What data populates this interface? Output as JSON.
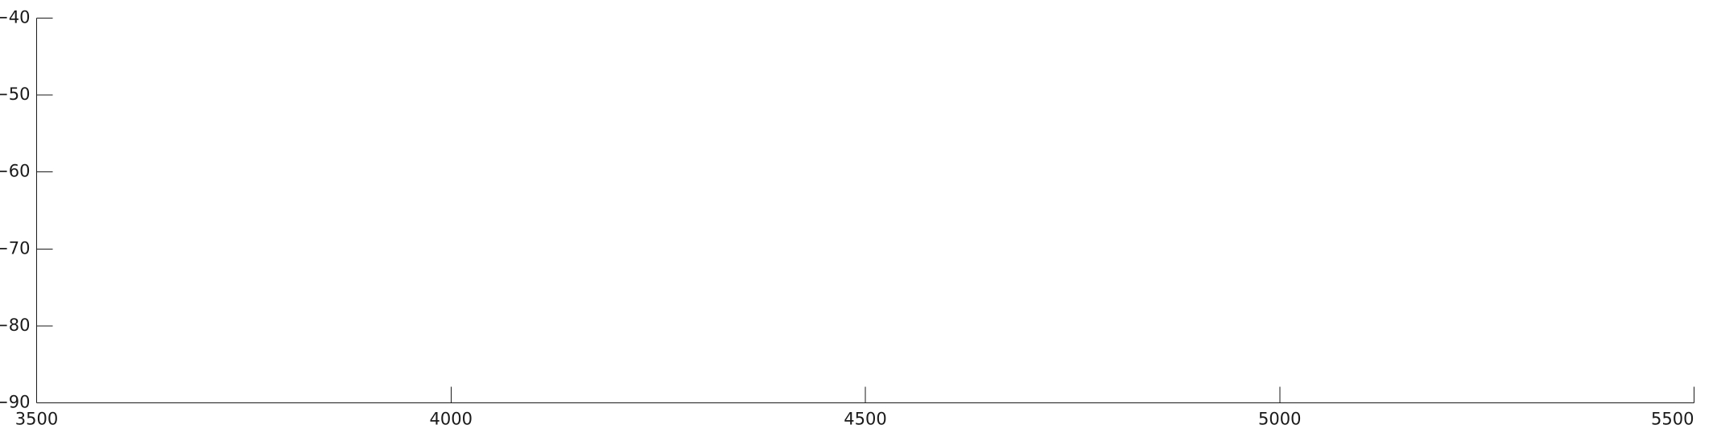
{
  "chart_data": {
    "type": "line",
    "title": "",
    "xlabel": "",
    "ylabel": "",
    "xlim": [
      3500,
      5500
    ],
    "ylim": [
      -90,
      -40
    ],
    "x_ticks": [
      3500,
      4000,
      4500,
      5000,
      5500
    ],
    "x_tick_labels": [
      "3500",
      "4000",
      "4500",
      "5000",
      "5500"
    ],
    "y_ticks": [
      -40,
      -50,
      -60,
      -70,
      -80,
      -90
    ],
    "y_tick_labels": [
      "−40",
      "−50",
      "−60",
      "−70",
      "−80",
      "−90"
    ],
    "grid": false,
    "series": []
  }
}
